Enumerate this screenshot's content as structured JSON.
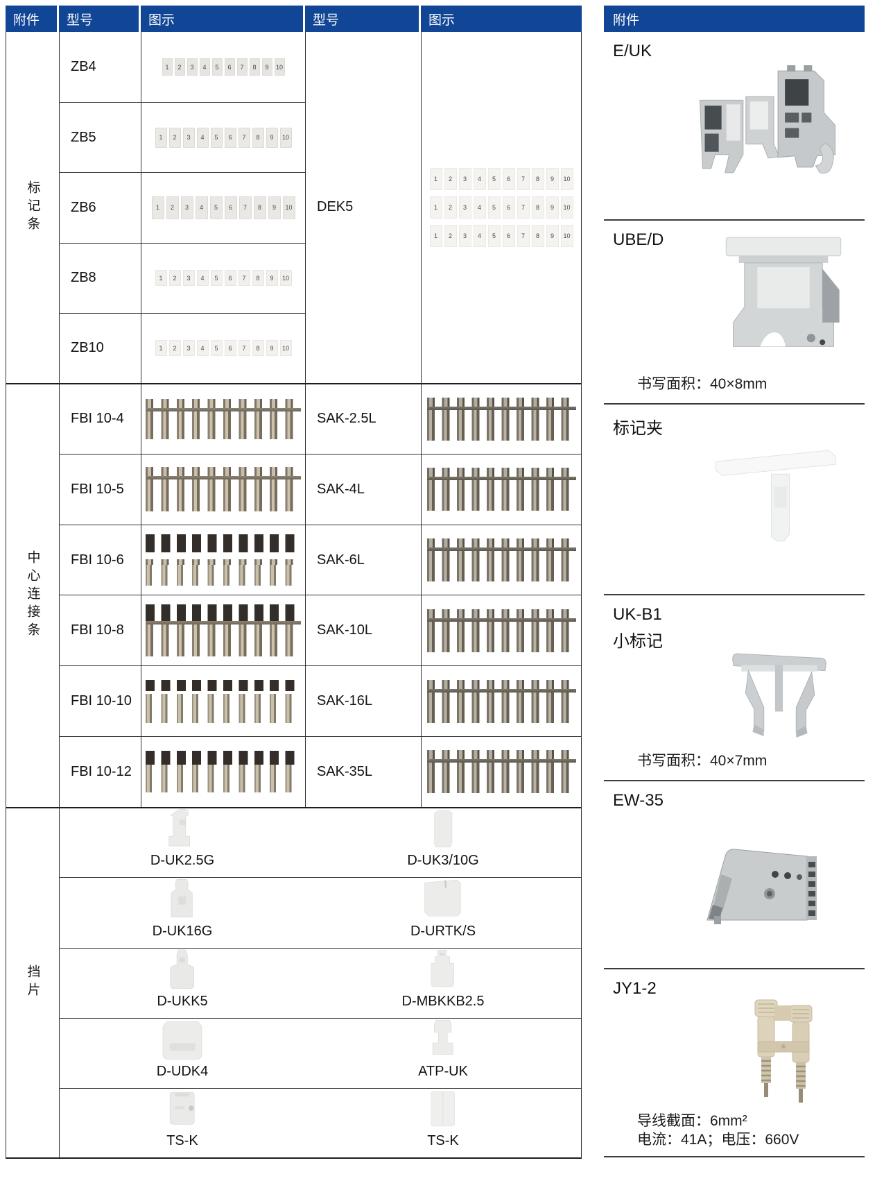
{
  "colors": {
    "header_blue": "#114595",
    "line_dark": "#2f2f2f",
    "group_line": "#1d1d1d"
  },
  "left_table": {
    "headers": [
      "附件",
      "型号",
      "图示",
      "型号",
      "图示"
    ],
    "groups": [
      {
        "label": "标记条",
        "rows": [
          {
            "model": "ZB4"
          },
          {
            "model": "ZB5"
          },
          {
            "model": "ZB6"
          },
          {
            "model": "ZB8"
          },
          {
            "model": "ZB10"
          }
        ],
        "right_model": "DEK5"
      },
      {
        "label": "中心连接条",
        "rows": [
          {
            "model_left": "FBI 10-4",
            "model_right": "SAK-2.5L"
          },
          {
            "model_left": "FBI 10-5",
            "model_right": "SAK-4L"
          },
          {
            "model_left": "FBI 10-6",
            "model_right": "SAK-6L"
          },
          {
            "model_left": "FBI 10-8",
            "model_right": "SAK-10L"
          },
          {
            "model_left": "FBI 10-10",
            "model_right": "SAK-16L"
          },
          {
            "model_left": "FBI 10-12",
            "model_right": "SAK-35L"
          }
        ]
      },
      {
        "label": "挡片",
        "rows": [
          {
            "model_left": "D-UK2.5G",
            "model_right": "D-UK3/10G"
          },
          {
            "model_left": "D-UK16G",
            "model_right": "D-URTK/S"
          },
          {
            "model_left": "D-UKK5",
            "model_right": "D-MBKKB2.5"
          },
          {
            "model_left": "D-UDK4",
            "model_right": "ATP-UK"
          },
          {
            "model_left": "TS-K",
            "model_right": "TS-K"
          }
        ]
      }
    ]
  },
  "marker_numbers": [
    "1",
    "2",
    "3",
    "4",
    "5",
    "6",
    "7",
    "8",
    "9",
    "10"
  ],
  "right_panel": {
    "header": "附件",
    "sections": [
      {
        "title": "E/UK"
      },
      {
        "title": "UBE/D",
        "caption": "书写面积：40×8mm"
      },
      {
        "title": "标记夹"
      },
      {
        "title": "UK-B1",
        "subtitle": "小标记",
        "caption": "书写面积：40×7mm"
      },
      {
        "title": "EW-35"
      },
      {
        "title": "JY1-2",
        "caption1": "导线截面：6mm²",
        "caption2": "电流：41A；电压：660V"
      }
    ]
  }
}
